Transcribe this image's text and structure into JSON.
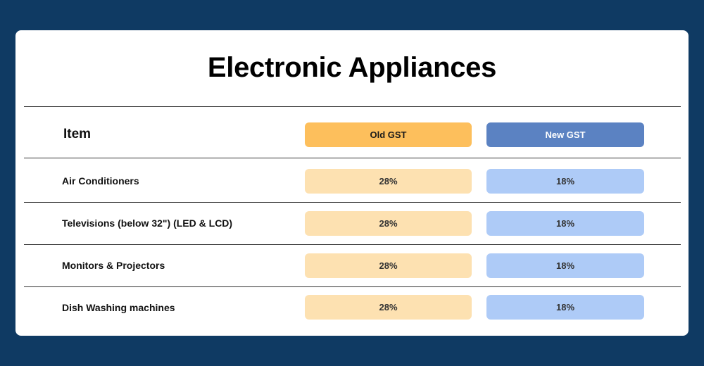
{
  "title": "Electronic Appliances",
  "header": {
    "item": "Item",
    "old_gst": "Old GST",
    "new_gst": "New GST"
  },
  "rows": [
    {
      "item": "Air Conditioners",
      "old_gst": "28%",
      "new_gst": "18%"
    },
    {
      "item": "Televisions (below 32\") (LED & LCD)",
      "old_gst": "28%",
      "new_gst": "18%"
    },
    {
      "item": "Monitors & Projectors",
      "old_gst": "28%",
      "new_gst": "18%"
    },
    {
      "item": "Dish Washing machines",
      "old_gst": "28%",
      "new_gst": "18%"
    }
  ],
  "colors": {
    "background": "#0f3a63",
    "old_header": "#fdbf5c",
    "old_value": "#fde1b1",
    "new_header": "#5b82c2",
    "new_value": "#aecbf7"
  }
}
